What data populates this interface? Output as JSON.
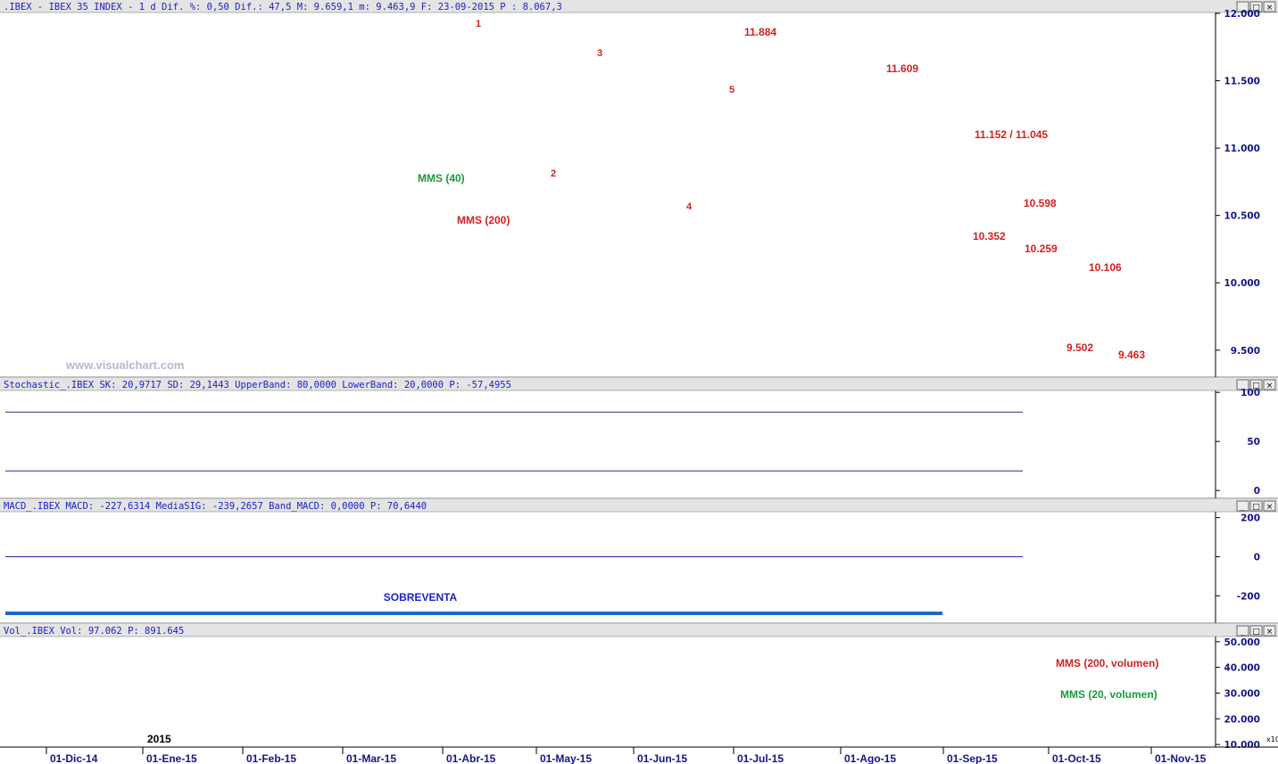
{
  "window_buttons": [
    "_",
    "□",
    "×"
  ],
  "panels": {
    "price": {
      "header": ".IBEX - IBEX 35 INDEX -  1 d Dif. %: 0,50 Dif.: 47,5 M: 9.659,1 m: 9.463,9 F: 23-09-2015 P : 8.067,3",
      "watermark": "www.visualchart.com",
      "moving_averages": [
        {
          "label": "MMS (40)",
          "color": "#1a9a3a"
        },
        {
          "label": "MMS (200)",
          "color": "#d42020"
        }
      ],
      "wave_labels": [
        "1",
        "2",
        "3",
        "4",
        "5"
      ],
      "level_labels": [
        "11.884",
        "11.609",
        "11.152 / 11.045",
        "10.598",
        "10.352",
        "10.259",
        "10.106",
        "9.502",
        "9.463"
      ]
    },
    "stochastic": {
      "header": "Stochastic_.IBEX SK: 20,9717 SD: 29,1443 UpperBand: 80,0000 LowerBand: 20,0000 P: -57,4955"
    },
    "macd": {
      "header": "MACD_.IBEX MACD: -227,6314 MediaSIG: -239,2657 Band_MACD: 0,0000 P: 70,6440",
      "annotation": "SOBREVENTA"
    },
    "volume": {
      "header": "Vol_.IBEX Vol: 97.062 P: 891.645",
      "year_label": "2015",
      "scale_tag": "x10",
      "moving_averages": [
        {
          "label": "MMS (200, volumen)",
          "color": "#d42020"
        },
        {
          "label": "MMS (20, volumen)",
          "color": "#1a9a3a"
        }
      ]
    }
  },
  "x_axis": [
    "01-Dic-14",
    "01-Ene-15",
    "01-Feb-15",
    "01-Mar-15",
    "01-Abr-15",
    "01-May-15",
    "01-Jun-15",
    "01-Jul-15",
    "01-Ago-15",
    "01-Sep-15",
    "01-Oct-15",
    "01-Nov-15"
  ],
  "chart_data": [
    {
      "type": "candlestick",
      "series": [
        {
          "name": "MMS (40)"
        },
        {
          "name": "MMS (200)"
        }
      ],
      "y_ticks": [
        "12.000",
        "11.500",
        "11.000",
        "10.500",
        "10.000",
        "9.500"
      ],
      "ylim": [
        9300,
        12000
      ]
    },
    {
      "type": "line",
      "y_ticks": [
        "100",
        "50",
        "0"
      ],
      "ylim": [
        -8,
        102
      ]
    },
    {
      "type": "line",
      "y_ticks": [
        "200",
        "0",
        "-200"
      ],
      "ylim": [
        -340,
        230
      ]
    },
    {
      "type": "bar",
      "series": [
        {
          "name": "MMS (200, volumen)"
        },
        {
          "name": "MMS (20, volumen)"
        }
      ],
      "y_ticks": [
        "50.000",
        "40.000",
        "30.000",
        "20.000",
        "10.000"
      ],
      "ylim": [
        9000,
        52000
      ]
    }
  ]
}
